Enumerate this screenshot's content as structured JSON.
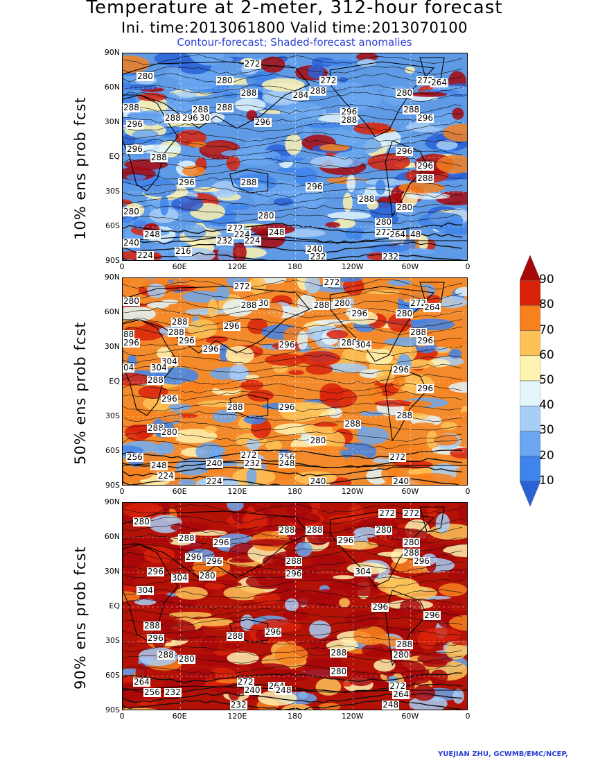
{
  "header": {
    "title": "Temperature at 2-meter, 312-hour forecast",
    "subtitle": "Ini. time:2013061800    Valid time:2013070100",
    "note": "Contour-forecast; Shaded-forecast anomalies"
  },
  "axes": {
    "lat_labels": [
      "90N",
      "60N",
      "30N",
      "EQ",
      "30S",
      "60S",
      "90S"
    ],
    "lon_labels": [
      "0",
      "60E",
      "120E",
      "180",
      "120W",
      "60W",
      "0"
    ]
  },
  "panels": [
    {
      "id": "p10",
      "label": "10% ens prob fcst",
      "base_color": "#5f9ae6",
      "contour_labels": [
        {
          "t": "272",
          "lx": 0.35,
          "ly": 0.03
        },
        {
          "t": "280",
          "lx": 0.04,
          "ly": 0.09
        },
        {
          "t": "280",
          "lx": 0.27,
          "ly": 0.11
        },
        {
          "t": "272",
          "lx": 0.57,
          "ly": 0.11
        },
        {
          "t": "272",
          "lx": 0.85,
          "ly": 0.11
        },
        {
          "t": "264",
          "lx": 0.89,
          "ly": 0.12
        },
        {
          "t": "288",
          "lx": 0.34,
          "ly": 0.17
        },
        {
          "t": "288",
          "lx": 0.54,
          "ly": 0.16
        },
        {
          "t": "284",
          "lx": 0.49,
          "ly": 0.18
        },
        {
          "t": "280",
          "lx": 0.79,
          "ly": 0.17
        },
        {
          "t": "288",
          "lx": 0.0,
          "ly": 0.24
        },
        {
          "t": "288",
          "lx": 0.2,
          "ly": 0.25
        },
        {
          "t": "288",
          "lx": 0.27,
          "ly": 0.24
        },
        {
          "t": "296",
          "lx": 0.63,
          "ly": 0.26
        },
        {
          "t": "288",
          "lx": 0.81,
          "ly": 0.25
        },
        {
          "t": "288",
          "lx": 0.12,
          "ly": 0.29
        },
        {
          "t": "296",
          "lx": 0.17,
          "ly": 0.29
        },
        {
          "t": "30",
          "lx": 0.22,
          "ly": 0.29
        },
        {
          "t": "296",
          "lx": 0.38,
          "ly": 0.31
        },
        {
          "t": "288",
          "lx": 0.63,
          "ly": 0.3
        },
        {
          "t": "296",
          "lx": 0.85,
          "ly": 0.29
        },
        {
          "t": "296",
          "lx": 0.01,
          "ly": 0.32
        },
        {
          "t": "296",
          "lx": 0.01,
          "ly": 0.44
        },
        {
          "t": "296",
          "lx": 0.79,
          "ly": 0.45
        },
        {
          "t": "288",
          "lx": 0.08,
          "ly": 0.48
        },
        {
          "t": "296",
          "lx": 0.85,
          "ly": 0.52
        },
        {
          "t": "296",
          "lx": 0.16,
          "ly": 0.6
        },
        {
          "t": "288",
          "lx": 0.34,
          "ly": 0.6
        },
        {
          "t": "296",
          "lx": 0.53,
          "ly": 0.62
        },
        {
          "t": "288",
          "lx": 0.85,
          "ly": 0.58
        },
        {
          "t": "288",
          "lx": 0.68,
          "ly": 0.68
        },
        {
          "t": "280",
          "lx": 0.0,
          "ly": 0.74
        },
        {
          "t": "280",
          "lx": 0.39,
          "ly": 0.76
        },
        {
          "t": "280",
          "lx": 0.79,
          "ly": 0.72
        },
        {
          "t": "280",
          "lx": 0.73,
          "ly": 0.79
        },
        {
          "t": "272",
          "lx": 0.3,
          "ly": 0.82
        },
        {
          "t": "248",
          "lx": 0.06,
          "ly": 0.85
        },
        {
          "t": "224",
          "lx": 0.32,
          "ly": 0.85
        },
        {
          "t": "248",
          "lx": 0.42,
          "ly": 0.84
        },
        {
          "t": "272",
          "lx": 0.73,
          "ly": 0.84
        },
        {
          "t": "264",
          "lx": 0.77,
          "ly": 0.85
        },
        {
          "t": "48",
          "lx": 0.83,
          "ly": 0.85
        },
        {
          "t": "240",
          "lx": 0.0,
          "ly": 0.89
        },
        {
          "t": "232",
          "lx": 0.27,
          "ly": 0.88
        },
        {
          "t": "224",
          "lx": 0.35,
          "ly": 0.88
        },
        {
          "t": "216",
          "lx": 0.15,
          "ly": 0.93
        },
        {
          "t": "224",
          "lx": 0.04,
          "ly": 0.95
        },
        {
          "t": "240",
          "lx": 0.53,
          "ly": 0.92
        },
        {
          "t": "232",
          "lx": 0.54,
          "ly": 0.97
        },
        {
          "t": "232",
          "lx": 0.75,
          "ly": 0.97
        }
      ]
    },
    {
      "id": "p50",
      "label": "50% ens prob fcst",
      "base_color": "#f38a2c",
      "contour_labels": [
        {
          "t": "272",
          "lx": 0.32,
          "ly": 0.02
        },
        {
          "t": "272",
          "lx": 0.58,
          "ly": 0.0
        },
        {
          "t": "280",
          "lx": 0.0,
          "ly": 0.09
        },
        {
          "t": "288",
          "lx": 0.34,
          "ly": 0.11
        },
        {
          "t": "30",
          "lx": 0.39,
          "ly": 0.1
        },
        {
          "t": "288",
          "lx": 0.55,
          "ly": 0.11
        },
        {
          "t": "280",
          "lx": 0.61,
          "ly": 0.1
        },
        {
          "t": "272",
          "lx": 0.83,
          "ly": 0.1
        },
        {
          "t": "264",
          "lx": 0.87,
          "ly": 0.12
        },
        {
          "t": "296",
          "lx": 0.66,
          "ly": 0.15
        },
        {
          "t": "280",
          "lx": 0.79,
          "ly": 0.15
        },
        {
          "t": "288",
          "lx": 0.14,
          "ly": 0.19
        },
        {
          "t": "296",
          "lx": 0.29,
          "ly": 0.21
        },
        {
          "t": "88",
          "lx": 0.0,
          "ly": 0.25
        },
        {
          "t": "288",
          "lx": 0.13,
          "ly": 0.24
        },
        {
          "t": "288",
          "lx": 0.83,
          "ly": 0.24
        },
        {
          "t": "296",
          "lx": 0.0,
          "ly": 0.29
        },
        {
          "t": "296",
          "lx": 0.16,
          "ly": 0.28
        },
        {
          "t": "296",
          "lx": 0.23,
          "ly": 0.32
        },
        {
          "t": "296",
          "lx": 0.45,
          "ly": 0.3
        },
        {
          "t": "288",
          "lx": 0.63,
          "ly": 0.29
        },
        {
          "t": "304",
          "lx": 0.67,
          "ly": 0.3
        },
        {
          "t": "296",
          "lx": 0.85,
          "ly": 0.28
        },
        {
          "t": "304",
          "lx": 0.11,
          "ly": 0.38
        },
        {
          "t": "04",
          "lx": 0.0,
          "ly": 0.41
        },
        {
          "t": "304",
          "lx": 0.08,
          "ly": 0.41
        },
        {
          "t": "296",
          "lx": 0.78,
          "ly": 0.42
        },
        {
          "t": "288",
          "lx": 0.07,
          "ly": 0.47
        },
        {
          "t": "296",
          "lx": 0.85,
          "ly": 0.51
        },
        {
          "t": "296",
          "lx": 0.11,
          "ly": 0.56
        },
        {
          "t": "288",
          "lx": 0.3,
          "ly": 0.6
        },
        {
          "t": "296",
          "lx": 0.45,
          "ly": 0.6
        },
        {
          "t": "288",
          "lx": 0.79,
          "ly": 0.64
        },
        {
          "t": "288",
          "lx": 0.64,
          "ly": 0.68
        },
        {
          "t": "288",
          "lx": 0.07,
          "ly": 0.7
        },
        {
          "t": "280",
          "lx": 0.11,
          "ly": 0.72
        },
        {
          "t": "280",
          "lx": 0.54,
          "ly": 0.76
        },
        {
          "t": "256",
          "lx": 0.01,
          "ly": 0.84
        },
        {
          "t": "272",
          "lx": 0.34,
          "ly": 0.83
        },
        {
          "t": "256",
          "lx": 0.45,
          "ly": 0.84
        },
        {
          "t": "272",
          "lx": 0.77,
          "ly": 0.84
        },
        {
          "t": "248",
          "lx": 0.08,
          "ly": 0.88
        },
        {
          "t": "240",
          "lx": 0.24,
          "ly": 0.87
        },
        {
          "t": "232",
          "lx": 0.35,
          "ly": 0.87
        },
        {
          "t": "248",
          "lx": 0.45,
          "ly": 0.87
        },
        {
          "t": "224",
          "lx": 0.1,
          "ly": 0.93
        },
        {
          "t": "224",
          "lx": 0.24,
          "ly": 0.97
        },
        {
          "t": "240",
          "lx": 0.54,
          "ly": 0.97
        },
        {
          "t": "240",
          "lx": 0.78,
          "ly": 0.97
        }
      ]
    },
    {
      "id": "p90",
      "label": "90% ens prob fcst",
      "base_color": "#b41206",
      "contour_labels": [
        {
          "t": "280",
          "lx": 0.03,
          "ly": 0.07
        },
        {
          "t": "272",
          "lx": 0.74,
          "ly": 0.03
        },
        {
          "t": "272",
          "lx": 0.81,
          "ly": 0.03
        },
        {
          "t": "288",
          "lx": 0.45,
          "ly": 0.11
        },
        {
          "t": "288",
          "lx": 0.53,
          "ly": 0.11
        },
        {
          "t": "280",
          "lx": 0.73,
          "ly": 0.11
        },
        {
          "t": "288",
          "lx": 0.16,
          "ly": 0.15
        },
        {
          "t": "296",
          "lx": 0.26,
          "ly": 0.17
        },
        {
          "t": "296",
          "lx": 0.62,
          "ly": 0.16
        },
        {
          "t": "280",
          "lx": 0.81,
          "ly": 0.17
        },
        {
          "t": "288",
          "lx": 0.81,
          "ly": 0.22
        },
        {
          "t": "296",
          "lx": 0.18,
          "ly": 0.24
        },
        {
          "t": "296",
          "lx": 0.24,
          "ly": 0.26
        },
        {
          "t": "288",
          "lx": 0.47,
          "ly": 0.26
        },
        {
          "t": "296",
          "lx": 0.84,
          "ly": 0.26
        },
        {
          "t": "296",
          "lx": 0.07,
          "ly": 0.31
        },
        {
          "t": "296",
          "lx": 0.47,
          "ly": 0.32
        },
        {
          "t": "304",
          "lx": 0.67,
          "ly": 0.31
        },
        {
          "t": "304",
          "lx": 0.14,
          "ly": 0.34
        },
        {
          "t": "280",
          "lx": 0.22,
          "ly": 0.33
        },
        {
          "t": "304",
          "lx": 0.04,
          "ly": 0.4
        },
        {
          "t": "296",
          "lx": 0.72,
          "ly": 0.48
        },
        {
          "t": "296",
          "lx": 0.87,
          "ly": 0.52
        },
        {
          "t": "288",
          "lx": 0.06,
          "ly": 0.57
        },
        {
          "t": "296",
          "lx": 0.07,
          "ly": 0.63
        },
        {
          "t": "288",
          "lx": 0.3,
          "ly": 0.62
        },
        {
          "t": "296",
          "lx": 0.41,
          "ly": 0.6
        },
        {
          "t": "288",
          "lx": 0.79,
          "ly": 0.66
        },
        {
          "t": "288",
          "lx": 0.6,
          "ly": 0.7
        },
        {
          "t": "280",
          "lx": 0.78,
          "ly": 0.71
        },
        {
          "t": "288",
          "lx": 0.1,
          "ly": 0.71
        },
        {
          "t": "280",
          "lx": 0.16,
          "ly": 0.73
        },
        {
          "t": "280",
          "lx": 0.6,
          "ly": 0.79
        },
        {
          "t": "264",
          "lx": 0.03,
          "ly": 0.84
        },
        {
          "t": "272",
          "lx": 0.33,
          "ly": 0.84
        },
        {
          "t": "264",
          "lx": 0.42,
          "ly": 0.86
        },
        {
          "t": "272",
          "lx": 0.77,
          "ly": 0.86
        },
        {
          "t": "256",
          "lx": 0.06,
          "ly": 0.89
        },
        {
          "t": "232",
          "lx": 0.12,
          "ly": 0.89
        },
        {
          "t": "240",
          "lx": 0.35,
          "ly": 0.88
        },
        {
          "t": "248",
          "lx": 0.44,
          "ly": 0.88
        },
        {
          "t": "264",
          "lx": 0.78,
          "ly": 0.9
        },
        {
          "t": "232",
          "lx": 0.31,
          "ly": 0.95
        },
        {
          "t": "248",
          "lx": 0.75,
          "ly": 0.95
        }
      ]
    }
  ],
  "colorbar": {
    "levels": [
      "10",
      "20",
      "30",
      "40",
      "50",
      "60",
      "70",
      "80",
      "90"
    ],
    "colors": [
      "#2a62d6",
      "#3f84ea",
      "#6ba7f0",
      "#a8cef6",
      "#e2f6fb",
      "#fff3b0",
      "#fdc257",
      "#f7811f",
      "#d8220a",
      "#a8070a"
    ]
  },
  "credit": "YUEJIAN ZHU, GCWMB/EMC/NCEP,"
}
